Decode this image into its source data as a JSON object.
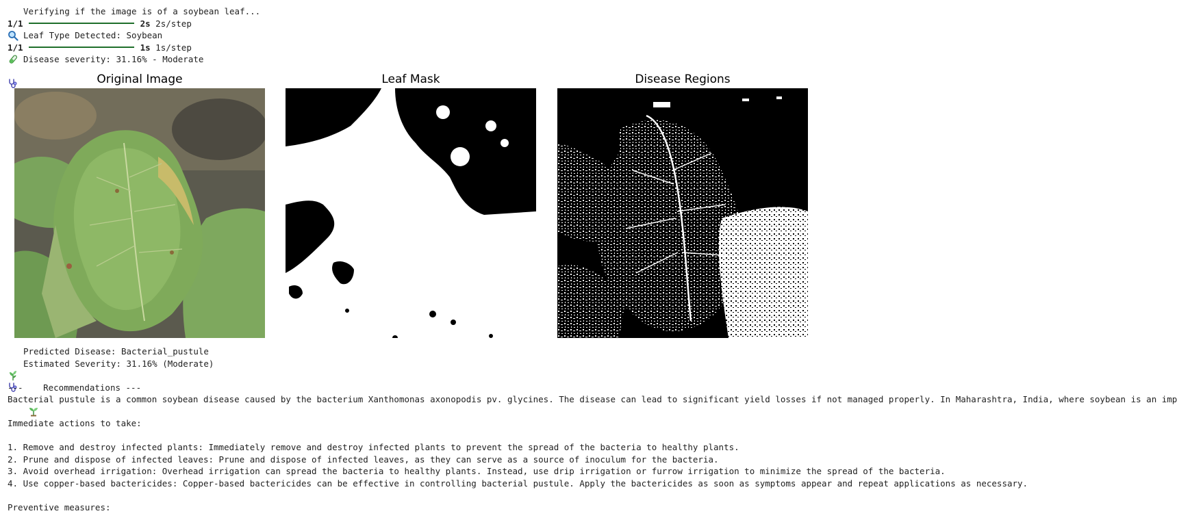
{
  "log": {
    "verify": "Verifying if the image is of a soybean leaf...",
    "step1_count": "1/1",
    "step1_time": "2s",
    "step1_rate": "2s/step",
    "leaf_type": "Leaf Type Detected: Soybean",
    "step2_count": "1/1",
    "step2_time": "1s",
    "step2_rate": "1s/step",
    "severity": "Disease severity: 31.16% - Moderate"
  },
  "figure": {
    "panels": [
      {
        "title": "Original Image"
      },
      {
        "title": "Leaf Mask"
      },
      {
        "title": "Disease Regions"
      }
    ]
  },
  "result": {
    "predicted": "Predicted Disease: Bacterial_pustule",
    "estimated": "Estimated Severity: 31.16% (Moderate)"
  },
  "recommendations": {
    "heading_prefix": "---",
    "heading_label": "Recommendations ---",
    "intro": "Bacterial pustule is a common soybean disease caused by the bacterium Xanthomonas axonopodis pv. glycines. The disease can lead to significant yield losses if not managed properly. In Maharashtra, India, where soybean is an imp",
    "immediate_heading": "Immediate actions to take:",
    "actions": [
      "1. Remove and destroy infected plants: Immediately remove and destroy infected plants to prevent the spread of the bacteria to healthy plants.",
      "2. Prune and dispose of infected leaves: Prune and dispose of infected leaves, as they can serve as a source of inoculum for the bacteria.",
      "3. Avoid overhead irrigation: Overhead irrigation can spread the bacteria to healthy plants. Instead, use drip irrigation or furrow irrigation to minimize the spread of the bacteria.",
      "4. Use copper-based bactericides: Copper-based bactericides can be effective in controlling bacterial pustule. Apply the bactericides as soon as symptoms appear and repeat applications as necessary."
    ],
    "preventive_heading": "Preventive measures:"
  },
  "icons": {
    "verify": "magnifying-glass-icon",
    "leaf": "test-tube-icon",
    "severity": "stethoscope-icon",
    "predicted": "herb-icon",
    "estimated": "stethoscope-icon",
    "recommend": "seedling-icon"
  },
  "colors": {
    "progress_bar": "#1e6e2a",
    "text": "#212121"
  }
}
